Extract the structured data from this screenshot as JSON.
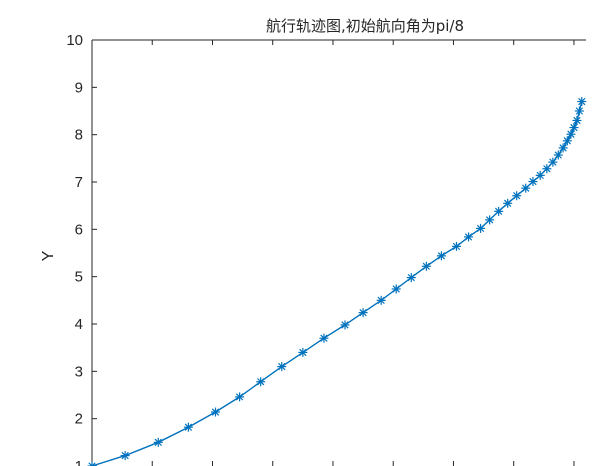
{
  "chart_data": {
    "type": "line",
    "title": "航行轨迹图,初始航向角为pi/8",
    "xlabel": "",
    "ylabel": "Y",
    "ylim": [
      1,
      10
    ],
    "yticks": [
      1,
      2,
      3,
      4,
      5,
      6,
      7,
      8,
      9,
      10
    ],
    "xlim": [
      0,
      8.2
    ],
    "xticks": [
      0,
      1,
      2,
      3,
      4,
      5,
      6,
      7,
      8
    ],
    "xtick_labels_visible": false,
    "grid": false,
    "marker": "asterisk",
    "line_color": "#0072bd",
    "series": [
      {
        "name": "",
        "x": [
          0,
          0.55,
          1.1,
          1.6,
          2.05,
          2.45,
          2.8,
          3.15,
          3.5,
          3.85,
          4.2,
          4.5,
          4.8,
          5.05,
          5.3,
          5.55,
          5.8,
          6.05,
          6.25,
          6.45,
          6.6,
          6.75,
          6.9,
          7.05,
          7.2,
          7.32,
          7.44,
          7.55,
          7.65,
          7.74,
          7.82,
          7.89,
          7.95,
          8.0,
          8.05,
          8.09,
          8.13
        ],
        "y": [
          1,
          1.22,
          1.5,
          1.82,
          2.14,
          2.46,
          2.78,
          3.1,
          3.4,
          3.7,
          3.98,
          4.24,
          4.5,
          4.74,
          4.98,
          5.22,
          5.44,
          5.64,
          5.84,
          6.02,
          6.2,
          6.38,
          6.55,
          6.71,
          6.87,
          7.01,
          7.14,
          7.28,
          7.42,
          7.57,
          7.72,
          7.87,
          8.01,
          8.15,
          8.3,
          8.5,
          8.7
        ]
      }
    ]
  }
}
